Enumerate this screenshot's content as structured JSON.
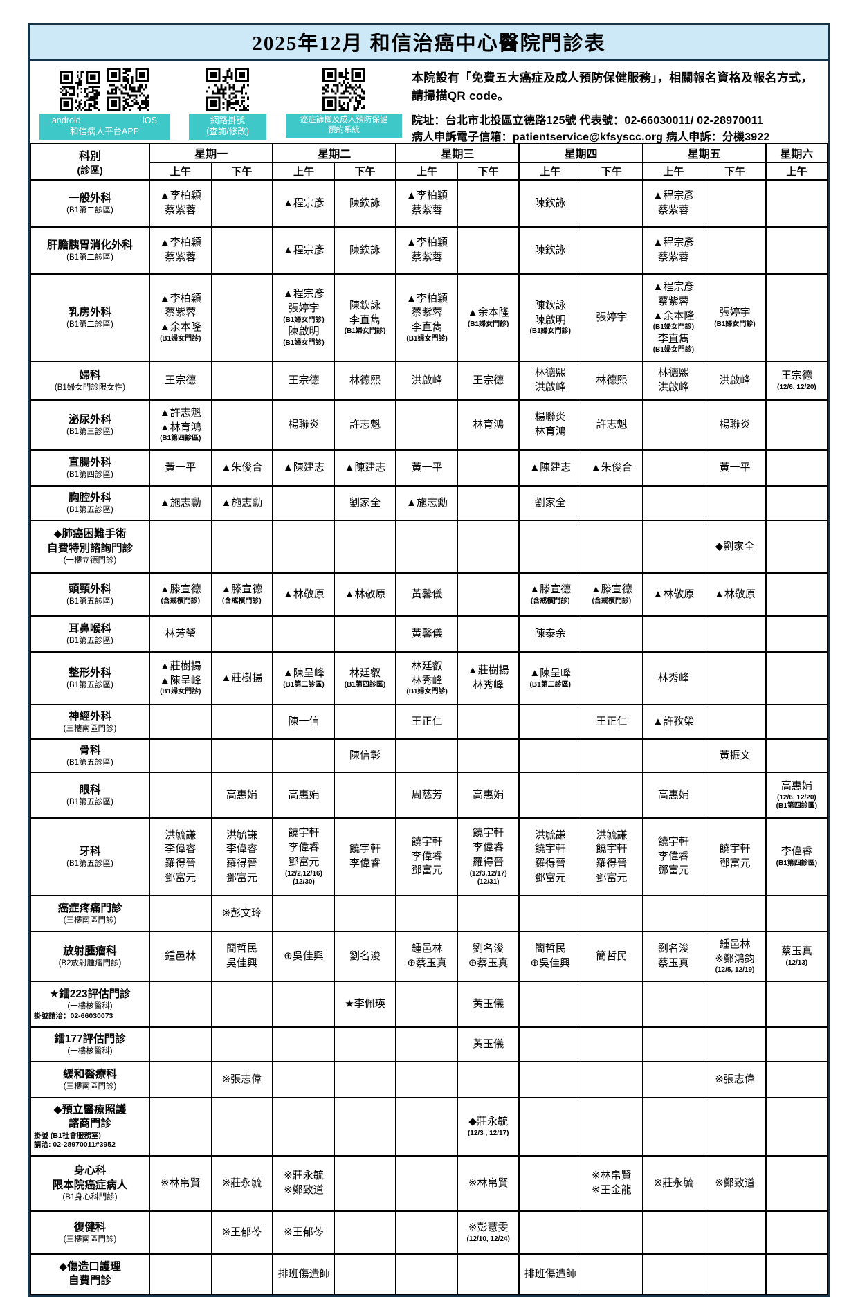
{
  "title": "2025年12月 和信治癌中心醫院門診表",
  "colors": {
    "accent_teal": "#3FC8C8",
    "title_bg": "#CDE9F7",
    "border_dark": "#14344A"
  },
  "header": {
    "qr": {
      "app_left": "android",
      "app_right": "iOS",
      "app_line2": "和信病人平台APP",
      "web_line1": "網路掛號",
      "web_line2": "(查詢/修改)",
      "screen_line1": "癌症篩檢及成人預防保健",
      "screen_line2": "預約系統"
    },
    "notice": "本院設有「免費五大癌症及成人預防保健服務」，相關報名資格及報名方式，請掃描QR code。",
    "address": "院址：台北市北投區立德路125號  代表號：02-66030011/ 02-28970011",
    "contact": "病人申訴電子信箱：patientservice@kfsyscc.org  病人申訴：分機3922"
  },
  "table": {
    "corner_line1": "科別",
    "corner_line2": "(診區)",
    "days": [
      {
        "label": "星期一",
        "slots": [
          "上午",
          "下午"
        ]
      },
      {
        "label": "星期二",
        "slots": [
          "上午",
          "下午"
        ]
      },
      {
        "label": "星期三",
        "slots": [
          "上午",
          "下午"
        ]
      },
      {
        "label": "星期四",
        "slots": [
          "上午",
          "下午"
        ]
      },
      {
        "label": "星期五",
        "slots": [
          "上午",
          "下午"
        ]
      },
      {
        "label": "星期六",
        "slots": [
          "上午"
        ]
      }
    ],
    "rows": [
      {
        "dept": {
          "names": [
            "一般外科"
          ],
          "area": "(B1第二診區)"
        },
        "cells": [
          [
            "▲李柏穎",
            "蔡紫蓉"
          ],
          [],
          [
            "▲程宗彥"
          ],
          [
            "陳欽詠"
          ],
          [
            "▲李柏穎",
            "蔡紫蓉"
          ],
          [],
          [
            "陳欽詠"
          ],
          [],
          [
            "▲程宗彥",
            "蔡紫蓉"
          ],
          [],
          []
        ]
      },
      {
        "dept": {
          "names": [
            "肝膽胰胃消化外科"
          ],
          "area": "(B1第二診區)"
        },
        "cells": [
          [
            "▲李柏穎",
            "蔡紫蓉"
          ],
          [],
          [
            "▲程宗彥"
          ],
          [
            "陳欽詠"
          ],
          [
            "▲李柏穎",
            "蔡紫蓉"
          ],
          [],
          [
            "陳欽詠"
          ],
          [],
          [
            "▲程宗彥",
            "蔡紫蓉"
          ],
          [],
          []
        ]
      },
      {
        "dept": {
          "names": [
            "乳房外科"
          ],
          "area": "(B1第二診區)"
        },
        "cells": [
          [
            "▲李柏穎",
            "蔡紫蓉",
            "▲余本隆",
            "(B1婦女門診)"
          ],
          [],
          [
            "▲程宗彥",
            "張婷宇",
            "(B1婦女門診)",
            "陳啟明",
            "(B1婦女門診)"
          ],
          [
            "陳欽詠",
            "李直雋",
            "(B1婦女門診)"
          ],
          [
            "▲李柏穎",
            "蔡紫蓉",
            "李直雋",
            "(B1婦女門診)"
          ],
          [
            "▲余本隆",
            "(B1婦女門診)"
          ],
          [
            "陳欽詠",
            "陳啟明",
            "(B1婦女門診)"
          ],
          [
            "張婷宇"
          ],
          [
            "▲程宗彥",
            "蔡紫蓉",
            "▲余本隆",
            "(B1婦女門診)",
            "李直雋",
            "(B1婦女門診)"
          ],
          [
            "張婷宇",
            "(B1婦女門診)"
          ],
          []
        ]
      },
      {
        "dept": {
          "names": [
            "婦科"
          ],
          "area": "(B1婦女門診限女性)"
        },
        "cells": [
          [
            "王宗德"
          ],
          [],
          [
            "王宗德"
          ],
          [
            "林德熙"
          ],
          [
            "洪啟峰"
          ],
          [
            "王宗德"
          ],
          [
            "林德熙",
            "洪啟峰"
          ],
          [
            "林德熙"
          ],
          [
            "林德熙",
            "洪啟峰"
          ],
          [
            "洪啟峰"
          ],
          [
            "王宗德",
            "(12/6, 12/20)"
          ]
        ]
      },
      {
        "dept": {
          "names": [
            "泌尿外科"
          ],
          "area": "(B1第三診區)"
        },
        "cells": [
          [
            "▲許志魁",
            "▲林育鴻",
            "(B1第四診區)"
          ],
          [],
          [
            "楊聯炎"
          ],
          [
            "許志魁"
          ],
          [],
          [
            "林育鴻"
          ],
          [
            "楊聯炎",
            "林育鴻"
          ],
          [
            "許志魁"
          ],
          [],
          [
            "楊聯炎"
          ],
          []
        ]
      },
      {
        "dept": {
          "names": [
            "直腸外科"
          ],
          "area": "(B1第四診區)"
        },
        "cells": [
          [
            "黃一平"
          ],
          [
            "▲朱俊合"
          ],
          [
            "▲陳建志"
          ],
          [
            "▲陳建志"
          ],
          [
            "黃一平"
          ],
          [],
          [
            "▲陳建志"
          ],
          [
            "▲朱俊合"
          ],
          [],
          [
            "黃一平"
          ],
          []
        ]
      },
      {
        "dept": {
          "names": [
            "胸腔外科"
          ],
          "area": "(B1第五診區)"
        },
        "cells": [
          [
            "▲施志勳"
          ],
          [
            "▲施志勳"
          ],
          [],
          [
            "劉家全"
          ],
          [
            "▲施志勳"
          ],
          [],
          [
            "劉家全"
          ],
          [],
          [],
          [],
          []
        ]
      },
      {
        "dept": {
          "names": [
            "◆肺癌困難手術",
            "自費特別諮詢門診"
          ],
          "area": "(一樓立德門診)"
        },
        "cells": [
          [],
          [],
          [],
          [],
          [],
          [],
          [],
          [],
          [],
          [
            "◆劉家全"
          ],
          []
        ]
      },
      {
        "dept": {
          "names": [
            "頭頸外科"
          ],
          "area": "(B1第五診區)"
        },
        "cells": [
          [
            "▲滕宣德",
            "(含戒檳門診)"
          ],
          [
            "▲滕宣德",
            "(含戒檳門診)"
          ],
          [
            "▲林敬原"
          ],
          [
            "▲林敬原"
          ],
          [
            "黃馨儀"
          ],
          [],
          [
            "▲滕宣德",
            "(含戒檳門診)"
          ],
          [
            "▲滕宣德",
            "(含戒檳門診)"
          ],
          [
            "▲林敬原"
          ],
          [
            "▲林敬原"
          ],
          []
        ]
      },
      {
        "dept": {
          "names": [
            "耳鼻喉科"
          ],
          "area": "(B1第五診區)"
        },
        "cells": [
          [
            "林芳瑩"
          ],
          [],
          [],
          [],
          [
            "黃馨儀"
          ],
          [],
          [
            "陳泰余"
          ],
          [],
          [],
          [],
          []
        ]
      },
      {
        "dept": {
          "names": [
            "整形外科"
          ],
          "area": "(B1第五診區)"
        },
        "cells": [
          [
            "▲莊樹揚",
            "▲陳呈峰",
            "(B1婦女門診)"
          ],
          [
            "▲莊樹揚"
          ],
          [
            "▲陳呈峰",
            "(B1第二診區)"
          ],
          [
            "林廷叡",
            "(B1第四診區)"
          ],
          [
            "林廷叡",
            "林秀峰",
            "(B1婦女門診)"
          ],
          [
            "▲莊樹揚",
            "林秀峰"
          ],
          [
            "▲陳呈峰",
            "(B1第二診區)"
          ],
          [],
          [
            "林秀峰"
          ],
          [],
          []
        ]
      },
      {
        "dept": {
          "names": [
            "神經外科"
          ],
          "area": "(三樓南區門診)"
        },
        "cells": [
          [],
          [],
          [
            "陳一信"
          ],
          [],
          [
            "王正仁"
          ],
          [],
          [],
          [
            "王正仁"
          ],
          [
            "▲許孜榮"
          ],
          [],
          []
        ]
      },
      {
        "dept": {
          "names": [
            "骨科"
          ],
          "area": "(B1第五診區)"
        },
        "cells": [
          [],
          [],
          [],
          [
            "陳信彰"
          ],
          [],
          [],
          [],
          [],
          [],
          [
            "黃振文"
          ],
          []
        ]
      },
      {
        "dept": {
          "names": [
            "眼科"
          ],
          "area": "(B1第五診區)"
        },
        "cells": [
          [],
          [
            "高惠娟"
          ],
          [
            "高惠娟"
          ],
          [],
          [
            "周慈芳"
          ],
          [
            "高惠娟"
          ],
          [],
          [],
          [
            "高惠娟"
          ],
          [],
          [
            "高惠娟",
            "(12/6, 12/20)",
            "(B1第四診區)"
          ]
        ]
      },
      {
        "dept": {
          "names": [
            "牙科"
          ],
          "area": "(B1第五診區)"
        },
        "cells": [
          [
            "洪毓謙",
            "李偉睿",
            "羅得晉",
            "鄧富元"
          ],
          [
            "洪毓謙",
            "李偉睿",
            "羅得晉",
            "鄧富元"
          ],
          [
            "饒宇軒",
            "李偉睿",
            "鄧富元",
            "(12/2,12/16)",
            "(12/30)"
          ],
          [
            "饒宇軒",
            "李偉睿"
          ],
          [
            "饒宇軒",
            "李偉睿",
            "鄧富元"
          ],
          [
            "饒宇軒",
            "李偉睿",
            "羅得晉",
            "(12/3,12/17)",
            "(12/31)"
          ],
          [
            "洪毓謙",
            "饒宇軒",
            "羅得晉",
            "鄧富元"
          ],
          [
            "洪毓謙",
            "饒宇軒",
            "羅得晉",
            "鄧富元"
          ],
          [
            "饒宇軒",
            "李偉睿",
            "鄧富元"
          ],
          [
            "饒宇軒",
            "鄧富元"
          ],
          [
            "李偉睿",
            "(B1第四診區)"
          ]
        ]
      },
      {
        "dept": {
          "names": [
            "癌症疼痛門診"
          ],
          "area": "(三樓南區門診)"
        },
        "cells": [
          [],
          [
            "※彭文玲"
          ],
          [],
          [],
          [],
          [],
          [],
          [],
          [],
          [],
          []
        ]
      },
      {
        "dept": {
          "names": [
            "放射腫瘤科"
          ],
          "area": "(B2放射腫瘤門診)"
        },
        "cells": [
          [
            "鍾邑林"
          ],
          [
            "簡哲民",
            "吳佳興"
          ],
          [
            "⊕吳佳興"
          ],
          [
            "劉名浚"
          ],
          [
            "鍾邑林",
            "⊕蔡玉真"
          ],
          [
            "劉名浚",
            "⊕蔡玉真"
          ],
          [
            "簡哲民",
            "⊕吳佳興"
          ],
          [
            "簡哲民"
          ],
          [
            "劉名浚",
            "蔡玉真"
          ],
          [
            "鍾邑林",
            "※鄭鴻鈞",
            "(12/5, 12/19)"
          ],
          [
            "蔡玉真",
            "(12/13)"
          ]
        ]
      },
      {
        "dept": {
          "names": [
            "★鐳223評估門診"
          ],
          "area": "(一樓核醫科)",
          "notes": [
            "掛號請洽：02-66030073"
          ]
        },
        "cells": [
          [],
          [],
          [],
          [
            "★李佩瑛"
          ],
          [],
          [
            "黃玉儀"
          ],
          [],
          [],
          [],
          [],
          []
        ]
      },
      {
        "dept": {
          "names": [
            "鐳177評估門診"
          ],
          "area": "(一樓核醫科)"
        },
        "cells": [
          [],
          [],
          [],
          [],
          [],
          [
            "黃玉儀"
          ],
          [],
          [],
          [],
          [],
          []
        ]
      },
      {
        "dept": {
          "names": [
            "緩和醫療科"
          ],
          "area": "(三樓南區門診)"
        },
        "cells": [
          [],
          [
            "※張志偉"
          ],
          [],
          [],
          [],
          [],
          [],
          [],
          [],
          [
            "※張志偉"
          ],
          []
        ]
      },
      {
        "dept": {
          "names": [
            "◆預立醫療照護",
            "諮商門診"
          ],
          "notes": [
            "掛號 (B1社會服務室)",
            "請洽: 02-28970011#3952"
          ]
        },
        "cells": [
          [],
          [],
          [],
          [],
          [],
          [
            "◆莊永毓",
            "(12/3 , 12/17)"
          ],
          [],
          [],
          [],
          [],
          []
        ]
      },
      {
        "dept": {
          "names": [
            "身心科",
            "限本院癌症病人"
          ],
          "area": "(B1身心科門診)"
        },
        "cells": [
          [
            "※林帛賢"
          ],
          [
            "※莊永毓"
          ],
          [
            "※莊永毓",
            "※鄭致道"
          ],
          [],
          [],
          [
            "※林帛賢"
          ],
          [],
          [
            "※林帛賢",
            "※王金龍"
          ],
          [
            "※莊永毓"
          ],
          [
            "※鄭致道"
          ],
          []
        ]
      },
      {
        "dept": {
          "names": [
            "復健科"
          ],
          "area": "(三樓南區門診)"
        },
        "cells": [
          [],
          [
            "※王郁苓"
          ],
          [
            "※王郁苓"
          ],
          [],
          [],
          [
            "※彭薏雯",
            "(12/10, 12/24)"
          ],
          [],
          [],
          [],
          [],
          []
        ]
      },
      {
        "dept": {
          "names": [
            "◆傷造口護理",
            "自費門診"
          ]
        },
        "cells": [
          [],
          [],
          [
            "排班傷造師"
          ],
          [],
          [],
          [],
          [
            "排班傷造師"
          ],
          [],
          [],
          [],
          []
        ]
      }
    ]
  }
}
